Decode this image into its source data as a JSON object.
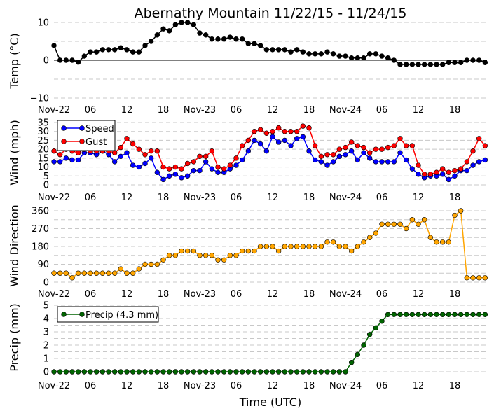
{
  "chart_data": [
    {
      "type": "line",
      "title": "Abernathy Mountain 11/22/15 - 11/24/15",
      "ylabel": "Temp (°C)",
      "ylim": [
        -10,
        10
      ],
      "yticks": [
        "10",
        "0",
        "−10"
      ],
      "grid": true,
      "xtick_labels": [
        "Nov-22",
        "06",
        "12",
        "18",
        "Nov-23",
        "06",
        "12",
        "18",
        "Nov-24",
        "06",
        "12",
        "18"
      ],
      "series": [
        {
          "name": "Temp",
          "color": "#000000",
          "values": [
            3.9,
            0,
            0,
            0,
            -0.5,
            1.1,
            2.2,
            2.2,
            2.8,
            2.8,
            2.8,
            3.3,
            2.8,
            2.2,
            2.2,
            3.9,
            5,
            6.7,
            8.3,
            7.8,
            9.4,
            10,
            10,
            9.4,
            7.2,
            6.7,
            5.6,
            5.6,
            5.6,
            6.1,
            5.6,
            5.6,
            4.4,
            4.4,
            3.9,
            2.8,
            2.8,
            2.8,
            2.8,
            2.2,
            2.8,
            2.2,
            1.7,
            1.7,
            1.7,
            2.2,
            1.7,
            1.1,
            1.1,
            0.6,
            0.6,
            0.6,
            1.7,
            1.7,
            1.1,
            0.6,
            0,
            -1.1,
            -1.1,
            -1.1,
            -1.1,
            -1.1,
            -1.1,
            -1.1,
            -1.1,
            -0.6,
            -0.6,
            -0.6,
            0,
            0,
            0,
            -0.6
          ]
        }
      ]
    },
    {
      "type": "line",
      "ylabel": "Wind (mph)",
      "ylim": [
        0,
        35
      ],
      "yticks": [
        "0",
        "5",
        "10",
        "15",
        "20",
        "25",
        "30",
        "35"
      ],
      "grid": true,
      "legend": "top-left",
      "xtick_labels": [
        "Nov-22",
        "06",
        "12",
        "18",
        "Nov-23",
        "06",
        "12",
        "18",
        "Nov-24",
        "06",
        "12",
        "18"
      ],
      "series": [
        {
          "name": "Speed",
          "color": "#0000ff",
          "values": [
            13,
            13,
            15,
            14,
            14,
            18,
            18,
            17,
            19,
            17,
            13,
            16,
            18,
            11,
            10,
            12,
            15,
            7,
            3,
            5,
            6,
            4,
            5,
            8,
            8,
            13,
            9,
            7,
            7,
            9,
            11,
            14,
            19,
            25,
            23,
            19,
            27,
            24,
            25,
            22,
            26,
            27,
            19,
            14,
            13,
            11,
            13,
            16,
            17,
            19,
            14,
            18,
            15,
            13,
            13,
            13,
            13,
            18,
            14,
            9,
            6,
            4,
            5,
            5,
            6,
            3,
            5,
            8,
            8,
            11,
            13,
            14
          ]
        },
        {
          "name": "Gust",
          "color": "#ff0000",
          "values": [
            19,
            17,
            20,
            19,
            18,
            20,
            19,
            19,
            19,
            19,
            18,
            21,
            26,
            23,
            20,
            17,
            19,
            19,
            10,
            9,
            10,
            9,
            12,
            13,
            16,
            16,
            19,
            10,
            9,
            11,
            15,
            22,
            25,
            30,
            31,
            29,
            30,
            32,
            30,
            30,
            30,
            33,
            32,
            22,
            16,
            17,
            17,
            20,
            21,
            24,
            22,
            21,
            18,
            20,
            20,
            21,
            22,
            26,
            22,
            22,
            11,
            6,
            6,
            7,
            9,
            7,
            8,
            9,
            13,
            19,
            26,
            22
          ]
        }
      ]
    },
    {
      "type": "line",
      "ylabel": "Wind Direction",
      "ylim": [
        0,
        360
      ],
      "yticks": [
        "0",
        "90",
        "180",
        "270",
        "360"
      ],
      "grid": true,
      "xtick_labels": [
        "Nov-22",
        "06",
        "12",
        "18",
        "Nov-23",
        "06",
        "12",
        "18",
        "Nov-24",
        "06",
        "12",
        "18"
      ],
      "series": [
        {
          "name": "Direction",
          "color": "#ffa500",
          "values": [
            45,
            45,
            45,
            22,
            45,
            45,
            45,
            45,
            45,
            45,
            45,
            67,
            45,
            45,
            67,
            90,
            90,
            90,
            112,
            135,
            135,
            157,
            157,
            157,
            135,
            135,
            135,
            112,
            112,
            135,
            135,
            157,
            157,
            157,
            180,
            180,
            180,
            157,
            180,
            180,
            180,
            180,
            180,
            180,
            180,
            202,
            202,
            180,
            180,
            157,
            180,
            202,
            225,
            247,
            292,
            292,
            292,
            292,
            270,
            315,
            292,
            315,
            225,
            202,
            202,
            202,
            337,
            360,
            22,
            22,
            22,
            22
          ]
        }
      ]
    },
    {
      "type": "line",
      "ylabel": "Precip (mm)",
      "xlabel": "Time (UTC)",
      "ylim": [
        0,
        5
      ],
      "yticks": [
        "0",
        "1",
        "2",
        "3",
        "4",
        "5"
      ],
      "grid": true,
      "legend": "top-left",
      "xtick_labels": [
        "Nov-22",
        "06",
        "12",
        "18",
        "Nov-23",
        "06",
        "12",
        "18",
        "Nov-24",
        "06",
        "12",
        "18"
      ],
      "series": [
        {
          "name": "Precip (4.3 mm)",
          "color": "#006400",
          "values": [
            0,
            0,
            0,
            0,
            0,
            0,
            0,
            0,
            0,
            0,
            0,
            0,
            0,
            0,
            0,
            0,
            0,
            0,
            0,
            0,
            0,
            0,
            0,
            0,
            0,
            0,
            0,
            0,
            0,
            0,
            0,
            0,
            0,
            0,
            0,
            0,
            0,
            0,
            0,
            0,
            0,
            0,
            0,
            0,
            0,
            0,
            0,
            0,
            0,
            0.7,
            1.3,
            2.0,
            2.8,
            3.3,
            3.8,
            4.3,
            4.3,
            4.3,
            4.3,
            4.3,
            4.3,
            4.3,
            4.3,
            4.3,
            4.3,
            4.3,
            4.3,
            4.3,
            4.3,
            4.3,
            4.3,
            4.3
          ]
        }
      ]
    }
  ]
}
